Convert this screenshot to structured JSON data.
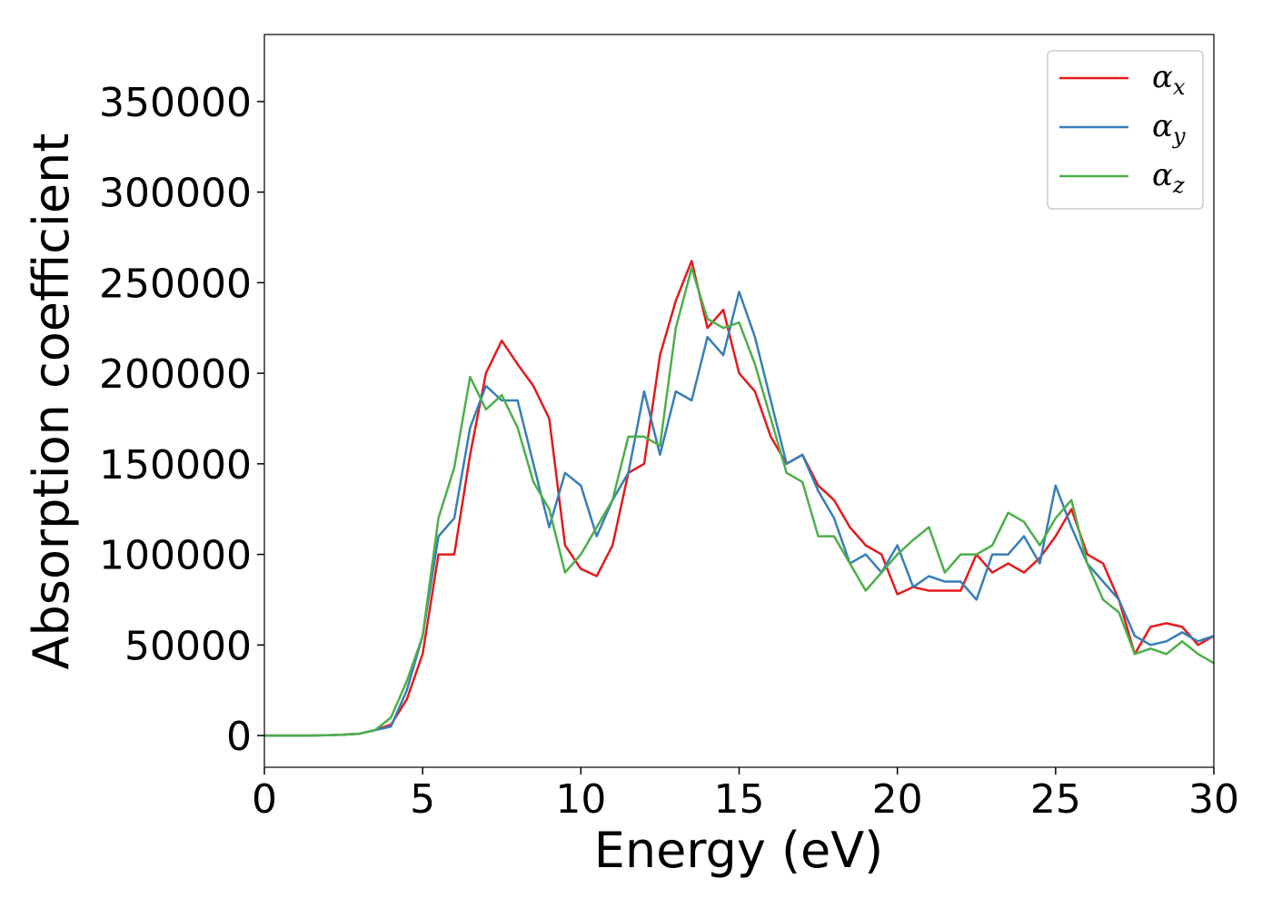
{
  "chart_data": {
    "type": "line",
    "xlabel": "Energy (eV)",
    "ylabel": "Absorption coefficient",
    "x": [
      0,
      0.5,
      1,
      1.5,
      2,
      2.5,
      3,
      3.5,
      4,
      4.5,
      5,
      5.5,
      6,
      6.5,
      7,
      7.5,
      8,
      8.5,
      9,
      9.5,
      10,
      10.5,
      11,
      11.5,
      12,
      12.5,
      13,
      13.5,
      14,
      14.5,
      15,
      15.5,
      16,
      16.5,
      17,
      17.5,
      18,
      18.5,
      19,
      19.5,
      20,
      20.5,
      21,
      21.5,
      22,
      22.5,
      23,
      23.5,
      24,
      24.5,
      25,
      25.5,
      26,
      26.5,
      27,
      27.5,
      28,
      28.5,
      29,
      29.5,
      30
    ],
    "series": [
      {
        "name": "αx",
        "color": "#e41a1c",
        "values": [
          0,
          0,
          0,
          0,
          200,
          500,
          1000,
          3000,
          6000,
          20000,
          45000,
          100000,
          100000,
          155000,
          200000,
          218000,
          205000,
          193000,
          175000,
          105000,
          92000,
          88000,
          105000,
          145000,
          150000,
          210000,
          240000,
          262000,
          225000,
          235000,
          200000,
          190000,
          165000,
          150000,
          155000,
          138000,
          130000,
          115000,
          105000,
          100000,
          78000,
          82000,
          80000,
          80000,
          80000,
          100000,
          90000,
          95000,
          90000,
          98000,
          110000,
          125000,
          100000,
          95000,
          75000,
          45000,
          60000,
          62000,
          60000,
          50000,
          55000
        ]
      },
      {
        "name": "αy",
        "color": "#377eb8",
        "values": [
          0,
          0,
          0,
          0,
          200,
          500,
          1000,
          3000,
          5000,
          25000,
          55000,
          110000,
          120000,
          170000,
          193000,
          185000,
          185000,
          150000,
          115000,
          145000,
          138000,
          110000,
          130000,
          145000,
          190000,
          155000,
          190000,
          185000,
          220000,
          210000,
          245000,
          220000,
          185000,
          150000,
          155000,
          135000,
          120000,
          95000,
          100000,
          90000,
          105000,
          82000,
          88000,
          85000,
          85000,
          75000,
          100000,
          100000,
          110000,
          95000,
          138000,
          115000,
          95000,
          85000,
          75000,
          55000,
          50000,
          52000,
          57000,
          52000,
          55000
        ]
      },
      {
        "name": "αz",
        "color": "#4daf4a",
        "values": [
          0,
          0,
          0,
          0,
          200,
          500,
          1000,
          3000,
          10000,
          30000,
          55000,
          120000,
          148000,
          198000,
          180000,
          188000,
          170000,
          140000,
          125000,
          90000,
          100000,
          115000,
          130000,
          165000,
          165000,
          160000,
          225000,
          258000,
          230000,
          225000,
          228000,
          205000,
          175000,
          145000,
          140000,
          110000,
          110000,
          95000,
          80000,
          90000,
          100000,
          108000,
          115000,
          90000,
          100000,
          100000,
          105000,
          123000,
          118000,
          105000,
          120000,
          130000,
          95000,
          75000,
          68000,
          45000,
          48000,
          45000,
          52000,
          45000,
          40000
        ]
      }
    ],
    "xlim": [
      0,
      30
    ],
    "xticks": [
      0,
      5,
      10,
      15,
      20,
      25,
      30
    ],
    "ylim": [
      -17500,
      387000
    ],
    "yticks": [
      0,
      50000,
      100000,
      150000,
      200000,
      250000,
      300000,
      350000
    ],
    "legend": "upper right",
    "grid": false
  }
}
